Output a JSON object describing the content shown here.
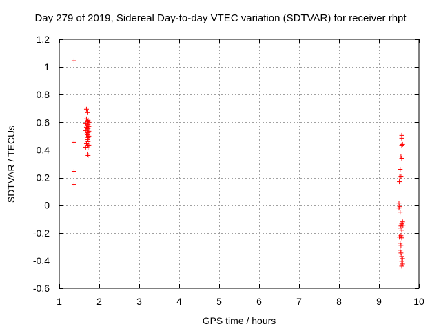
{
  "chart_data": {
    "type": "scatter",
    "title": "Day 279 of 2019, Sidereal Day-to-day VTEC variation (SDTVAR) for receiver rhpt",
    "xlabel": "GPS time / hours",
    "ylabel": "SDTVAR / TECUs",
    "xlim": [
      1,
      10
    ],
    "ylim": [
      -0.6,
      1.2
    ],
    "xticks": [
      1,
      2,
      3,
      4,
      5,
      6,
      7,
      8,
      9,
      10
    ],
    "yticks": [
      -0.6,
      -0.4,
      -0.2,
      0,
      0.2,
      0.4,
      0.6,
      0.8,
      1,
      1.2
    ],
    "xtick_labels": [
      "1",
      "2",
      "3",
      "4",
      "5",
      "6",
      "7",
      "8",
      "9",
      "10"
    ],
    "ytick_labels": [
      "-0.6",
      "-0.4",
      "-0.2",
      "0",
      "0.2",
      "0.4",
      "0.6",
      "0.8",
      "1",
      "1.2"
    ],
    "grid": true,
    "marker": "+",
    "color": "#ff0000",
    "series": [
      {
        "points": [
          [
            1.37,
            1.045
          ],
          [
            1.37,
            0.455
          ],
          [
            1.37,
            0.245
          ],
          [
            1.37,
            0.15
          ],
          [
            1.68,
            0.695
          ],
          [
            1.7,
            0.67
          ],
          [
            1.68,
            0.625
          ],
          [
            1.72,
            0.615
          ],
          [
            1.7,
            0.605
          ],
          [
            1.74,
            0.6
          ],
          [
            1.66,
            0.59
          ],
          [
            1.72,
            0.585
          ],
          [
            1.7,
            0.575
          ],
          [
            1.74,
            0.57
          ],
          [
            1.68,
            0.565
          ],
          [
            1.72,
            0.555
          ],
          [
            1.7,
            0.545
          ],
          [
            1.66,
            0.54
          ],
          [
            1.74,
            0.535
          ],
          [
            1.72,
            0.525
          ],
          [
            1.68,
            0.515
          ],
          [
            1.7,
            0.51
          ],
          [
            1.74,
            0.5
          ],
          [
            1.72,
            0.49
          ],
          [
            1.7,
            0.475
          ],
          [
            1.72,
            0.46
          ],
          [
            1.68,
            0.445
          ],
          [
            1.74,
            0.435
          ],
          [
            1.7,
            0.43
          ],
          [
            1.66,
            0.42
          ],
          [
            1.72,
            0.415
          ],
          [
            1.7,
            0.37
          ],
          [
            1.72,
            0.36
          ],
          [
            9.57,
            0.505
          ],
          [
            9.57,
            0.485
          ],
          [
            9.59,
            0.44
          ],
          [
            9.57,
            0.435
          ],
          [
            9.55,
            0.35
          ],
          [
            9.57,
            0.34
          ],
          [
            9.53,
            0.26
          ],
          [
            9.55,
            0.21
          ],
          [
            9.52,
            0.205
          ],
          [
            9.51,
            0.17
          ],
          [
            9.5,
            0.015
          ],
          [
            9.52,
            -0.01
          ],
          [
            9.5,
            -0.02
          ],
          [
            9.53,
            -0.05
          ],
          [
            9.59,
            -0.12
          ],
          [
            9.57,
            -0.135
          ],
          [
            9.55,
            -0.15
          ],
          [
            9.6,
            -0.145
          ],
          [
            9.53,
            -0.165
          ],
          [
            9.57,
            -0.18
          ],
          [
            9.55,
            -0.22
          ],
          [
            9.51,
            -0.23
          ],
          [
            9.57,
            -0.235
          ],
          [
            9.53,
            -0.275
          ],
          [
            9.55,
            -0.29
          ],
          [
            9.53,
            -0.325
          ],
          [
            9.55,
            -0.345
          ],
          [
            9.57,
            -0.37
          ],
          [
            9.59,
            -0.385
          ],
          [
            9.57,
            -0.405
          ],
          [
            9.59,
            -0.425
          ],
          [
            9.57,
            -0.44
          ]
        ]
      }
    ]
  }
}
